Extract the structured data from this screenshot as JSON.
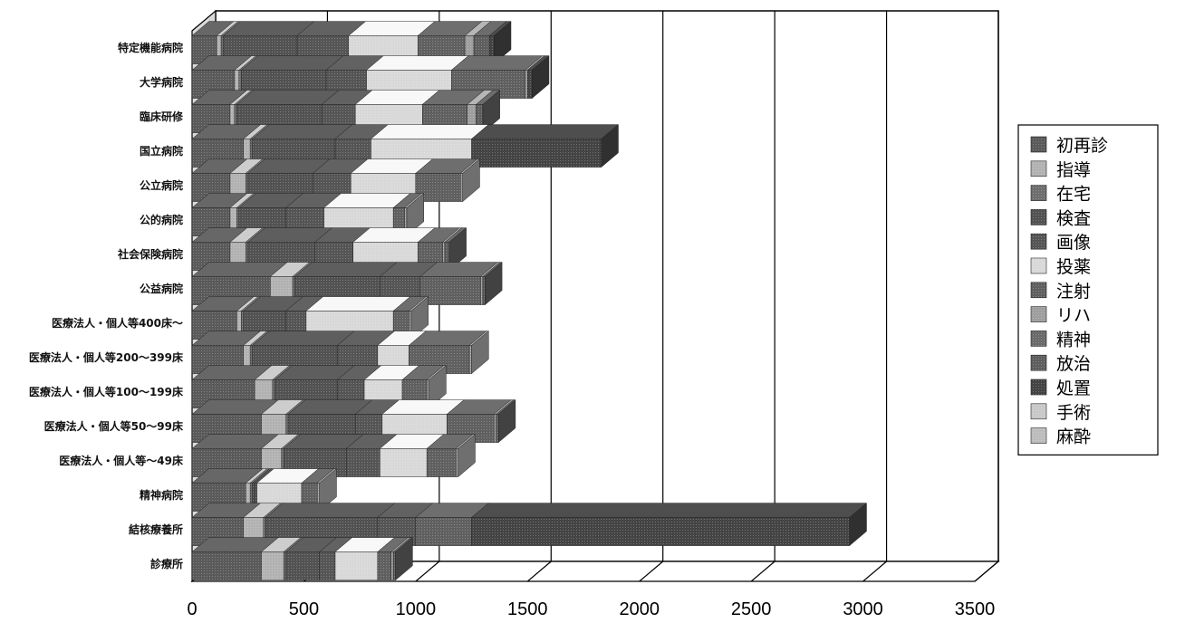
{
  "chart_data": {
    "type": "bar",
    "orientation": "horizontal",
    "stacked": true,
    "three_d": true,
    "xlim": [
      0,
      3500
    ],
    "x_ticks": [
      "0",
      "500",
      "1000",
      "1500",
      "2000",
      "2500",
      "3000",
      "3500"
    ],
    "grid": true,
    "legend_position": "right",
    "categories": [
      "特定機能病院",
      "大学病院",
      "臨床研修",
      "国立病院",
      "公立病院",
      "公的病院",
      "社会保険病院",
      "公益病院",
      "医療法人・個人等400床～",
      "医療法人・個人等200～399床",
      "医療法人・個人等100～199床",
      "医療法人・個人等50～99床",
      "医療法人・個人等～49床",
      "精神病院",
      "結核療養所",
      "診療所"
    ],
    "series": [
      {
        "name": "初再診",
        "color": "#5a5a5a",
        "values": [
          110,
          190,
          170,
          230,
          170,
          170,
          170,
          350,
          200,
          230,
          280,
          310,
          310,
          240,
          230,
          310
        ]
      },
      {
        "name": "指導",
        "color": "#b2b2b2",
        "values": [
          20,
          20,
          20,
          30,
          70,
          30,
          70,
          100,
          20,
          30,
          80,
          110,
          90,
          20,
          90,
          100
        ]
      },
      {
        "name": "在宅",
        "color": "#6e6e6e",
        "values": [
          10,
          10,
          10,
          10,
          10,
          10,
          10,
          10,
          10,
          10,
          10,
          10,
          10,
          10,
          10,
          10
        ]
      },
      {
        "name": "検査",
        "color": "#525252",
        "values": [
          330,
          380,
          380,
          370,
          290,
          210,
          300,
          380,
          190,
          380,
          280,
          300,
          280,
          10,
          500,
          150
        ]
      },
      {
        "name": "画像",
        "color": "#555555",
        "values": [
          230,
          180,
          150,
          160,
          170,
          170,
          170,
          180,
          90,
          180,
          120,
          120,
          150,
          10,
          170,
          70
        ]
      },
      {
        "name": "投薬",
        "color": "#d8d8d8",
        "values": [
          310,
          380,
          300,
          450,
          290,
          310,
          290,
          0,
          390,
          140,
          170,
          290,
          210,
          200,
          0,
          190
        ]
      },
      {
        "name": "注射",
        "color": "#606060",
        "values": [
          210,
          330,
          200,
          0,
          200,
          50,
          110,
          270,
          70,
          270,
          110,
          210,
          130,
          70,
          250,
          60
        ]
      },
      {
        "name": "リハ",
        "color": "#9e9e9e",
        "values": [
          40,
          10,
          40,
          0,
          10,
          10,
          10,
          10,
          10,
          10,
          10,
          10,
          10,
          10,
          0,
          10
        ]
      },
      {
        "name": "精神",
        "color": "#6a6a6a",
        "values": [
          0,
          0,
          0,
          0,
          0,
          0,
          0,
          0,
          0,
          0,
          0,
          0,
          0,
          0,
          0,
          0
        ]
      },
      {
        "name": "放治",
        "color": "#5e5e5e",
        "values": [
          70,
          0,
          30,
          0,
          0,
          0,
          20,
          10,
          0,
          0,
          0,
          10,
          0,
          0,
          0,
          10
        ]
      },
      {
        "name": "処置",
        "color": "#444444",
        "values": [
          20,
          20,
          0,
          580,
          0,
          0,
          0,
          0,
          0,
          0,
          0,
          0,
          0,
          0,
          1690,
          0
        ]
      },
      {
        "name": "手術",
        "color": "#c8c8c8",
        "values": [
          0,
          0,
          0,
          0,
          0,
          0,
          0,
          0,
          0,
          0,
          0,
          0,
          0,
          0,
          0,
          0
        ]
      },
      {
        "name": "麻酔",
        "color": "#bcbcbc",
        "values": [
          0,
          0,
          0,
          0,
          0,
          0,
          0,
          0,
          0,
          0,
          0,
          0,
          0,
          0,
          0,
          0
        ]
      }
    ]
  }
}
